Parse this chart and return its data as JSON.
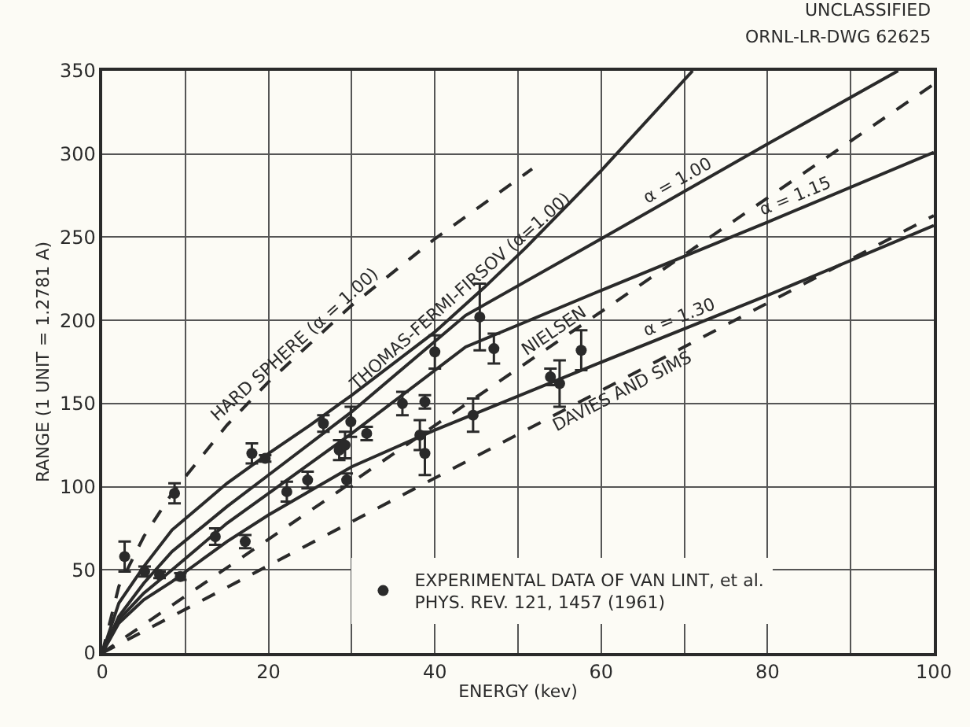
{
  "chart_data": {
    "type": "line",
    "xlabel": "ENERGY (kev)",
    "ylabel": "RANGE (1 UNIT = 1.2781 A)",
    "annotations": [
      "UNCLASSIFIED",
      "ORNL-LR-DWG 62625"
    ],
    "xlim": [
      0,
      100
    ],
    "ylim": [
      0,
      350
    ],
    "xticks": [
      0,
      {
        "value": 10,
        "label": null
      },
      20,
      {
        "value": 30,
        "label": null
      },
      40,
      {
        "value": 50,
        "label": null
      },
      60,
      {
        "value": 70,
        "label": null
      },
      80,
      {
        "value": 90,
        "label": null
      },
      100
    ],
    "yticks": [
      0,
      50,
      100,
      150,
      200,
      250,
      300,
      350
    ],
    "grid": true,
    "legend": "bottom",
    "series": [
      {
        "name": "HARD SPHERE (α = 1.00)",
        "color": "#2a2a2a",
        "line_style": "dashed",
        "x": [
          0,
          2,
          5,
          8.4,
          15,
          20,
          30,
          40,
          51.7
        ],
        "values": [
          0,
          40,
          70,
          96,
          137,
          163,
          209,
          249,
          291
        ]
      },
      {
        "name": "THOMAS-FERMI-FIRSOV (α=1.00)",
        "color": "#2a2a2a",
        "line_style": "solid",
        "x": [
          0,
          2,
          5,
          8.4,
          15,
          20,
          25,
          30,
          40,
          46,
          51,
          60,
          71
        ],
        "values": [
          0,
          30,
          52,
          74,
          102,
          120,
          137,
          155,
          193,
          220,
          244,
          290,
          350
        ]
      },
      {
        "name": "α = 1.00",
        "color": "#2a2a2a",
        "line_style": "solid",
        "x": [
          0,
          2,
          5,
          8.4,
          15,
          20,
          30,
          43.7,
          60,
          80,
          95.7
        ],
        "values": [
          0,
          22,
          42,
          61,
          88,
          107,
          145,
          203,
          249,
          306,
          350
        ]
      },
      {
        "name": "NIELSEN",
        "color": "#2a2a2a",
        "line_style": "dashed",
        "x": [
          0,
          100
        ],
        "values": [
          0,
          342
        ]
      },
      {
        "name": "α = 1.15",
        "color": "#2a2a2a",
        "line_style": "solid",
        "x": [
          0,
          2,
          5,
          8.4,
          15,
          20,
          30,
          43.7,
          60,
          80,
          100
        ],
        "values": [
          0,
          20,
          36,
          50,
          78,
          96,
          132,
          184,
          218,
          259,
          301
        ]
      },
      {
        "name": "α = 1.30",
        "color": "#2a2a2a",
        "line_style": "solid",
        "x": [
          0,
          2,
          5,
          8.4,
          15,
          20,
          30,
          40,
          58.6,
          80,
          100
        ],
        "values": [
          0,
          18,
          32,
          43,
          67,
          83,
          112,
          134,
          172,
          215,
          257
        ]
      },
      {
        "name": "DAVIES AND SIMS",
        "color": "#2a2a2a",
        "line_style": "dashed",
        "x": [
          0,
          100
        ],
        "values": [
          0,
          263
        ]
      },
      {
        "name": "EXPERIMENTAL DATA OF VAN LINT, et al.\nPHYS. REV. 121, 1457 (1961)",
        "type": "scatter",
        "marker": "circle",
        "color": "#2a2a2a",
        "x": [
          2.7,
          5.1,
          6.9,
          9.4,
          8.7,
          13.6,
          17.2,
          18.0,
          19.6,
          22.2,
          24.7,
          26.6,
          29.9,
          28.5,
          29.2,
          29.4,
          31.8,
          36.1,
          38.8,
          38.2,
          38.8,
          40.0,
          44.6,
          45.4,
          47.1,
          53.9,
          55.0,
          57.6
        ],
        "values": [
          58,
          49,
          47,
          46,
          96,
          70,
          67,
          120,
          117,
          97,
          104,
          138,
          139,
          122,
          125,
          104,
          132,
          150,
          151,
          131,
          120,
          181,
          143,
          202,
          183,
          166,
          162,
          182
        ],
        "errors": [
          9,
          3,
          2,
          2,
          6,
          5,
          4,
          6,
          2,
          6,
          5,
          5,
          9,
          6,
          8,
          4,
          4,
          7,
          4,
          9,
          13,
          10,
          10,
          20,
          9,
          5,
          14,
          12
        ]
      }
    ]
  }
}
